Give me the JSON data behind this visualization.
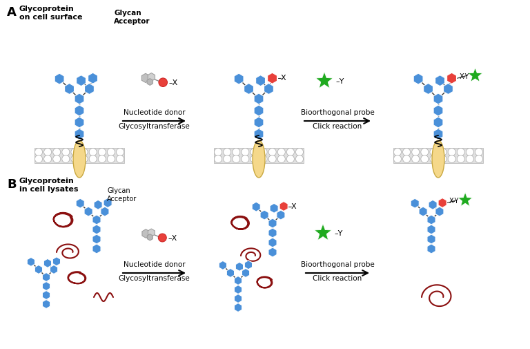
{
  "background_color": "#ffffff",
  "blue_color": "#4a90d9",
  "red_color": "#e8403a",
  "green_color": "#1faa1f",
  "dark_red_color": "#8b1010",
  "protein_color": "#f5d88a",
  "protein_edge": "#c9a840",
  "membrane_fill": "#e8e8e8",
  "membrane_edge": "#aaaaaa",
  "circle_fill": "#ffffff",
  "arrow_color": "#1a1a1a",
  "label_A": "A",
  "label_B": "B",
  "text_A": "Glycoprotein\non cell surface",
  "text_glycan_A": "Glycan\nAcceptor",
  "arrow1_top": "Nucleotide donor",
  "arrow1_bot": "Glycosyltransferase",
  "arrow2_top": "Bioorthogonal probe",
  "arrow2_bot": "Click reaction",
  "text_B": "Glycoprotein\nin cell lysates",
  "text_glycan_B": "Glycan\nAcceptor"
}
